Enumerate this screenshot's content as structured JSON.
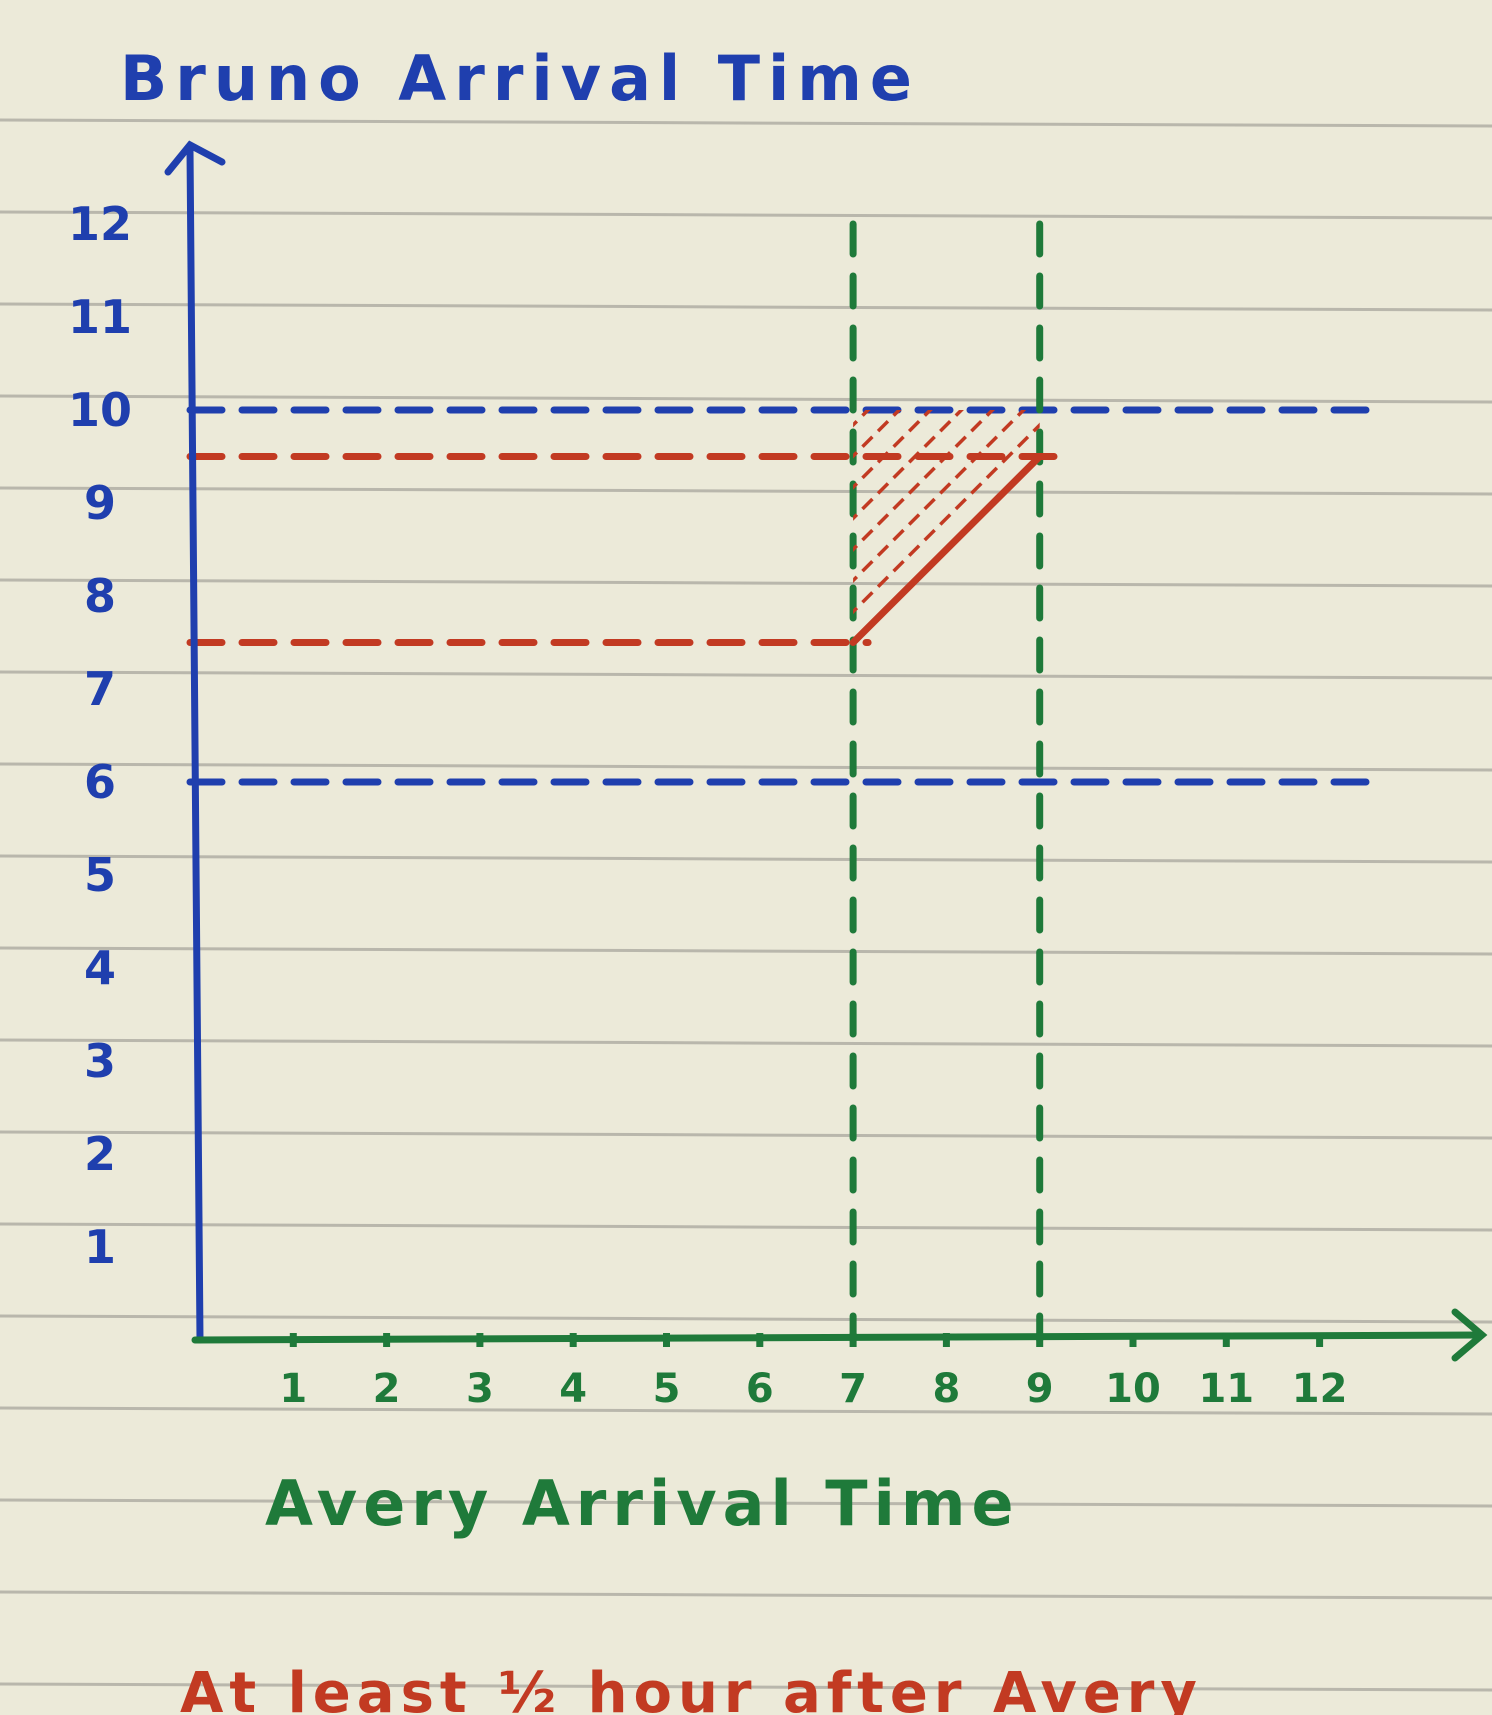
{
  "colors": {
    "paper": "#ecead9",
    "rule": "#b9b7ac",
    "blue": "#1f3fae",
    "green": "#1f7a3a",
    "red": "#c23a22"
  },
  "chart_data": {
    "type": "line",
    "title": "",
    "ylabel": "Bruno Arrival Time",
    "xlabel": "Avery Arrival Time",
    "caption": "At least ½ hour after Avery",
    "xlim": [
      0,
      12
    ],
    "ylim": [
      0,
      12
    ],
    "x_ticks": [
      "1",
      "2",
      "3",
      "4",
      "5",
      "6",
      "7",
      "8",
      "9",
      "10",
      "11",
      "12"
    ],
    "y_ticks": [
      "1",
      "2",
      "3",
      "4",
      "5",
      "6",
      "7",
      "8",
      "9",
      "10",
      "11",
      "12"
    ],
    "reference_lines": [
      {
        "orientation": "horizontal",
        "value": 10,
        "color": "blue"
      },
      {
        "orientation": "horizontal",
        "value": 6,
        "color": "blue"
      },
      {
        "orientation": "vertical",
        "value": 7,
        "color": "green"
      },
      {
        "orientation": "vertical",
        "value": 9,
        "color": "green"
      },
      {
        "orientation": "horizontal",
        "value": 9.5,
        "color": "red",
        "x_range": [
          0,
          9
        ]
      },
      {
        "orientation": "horizontal",
        "value": 7.5,
        "color": "red",
        "x_range": [
          0,
          7
        ]
      }
    ],
    "boundary_line": {
      "from": [
        7,
        7.5
      ],
      "to": [
        9,
        9.5
      ],
      "color": "red"
    },
    "shaded_region": {
      "polygon": [
        [
          7,
          7.5
        ],
        [
          9,
          9.5
        ],
        [
          9,
          10
        ],
        [
          7,
          10
        ]
      ],
      "color": "red",
      "fill": "hatched"
    }
  }
}
